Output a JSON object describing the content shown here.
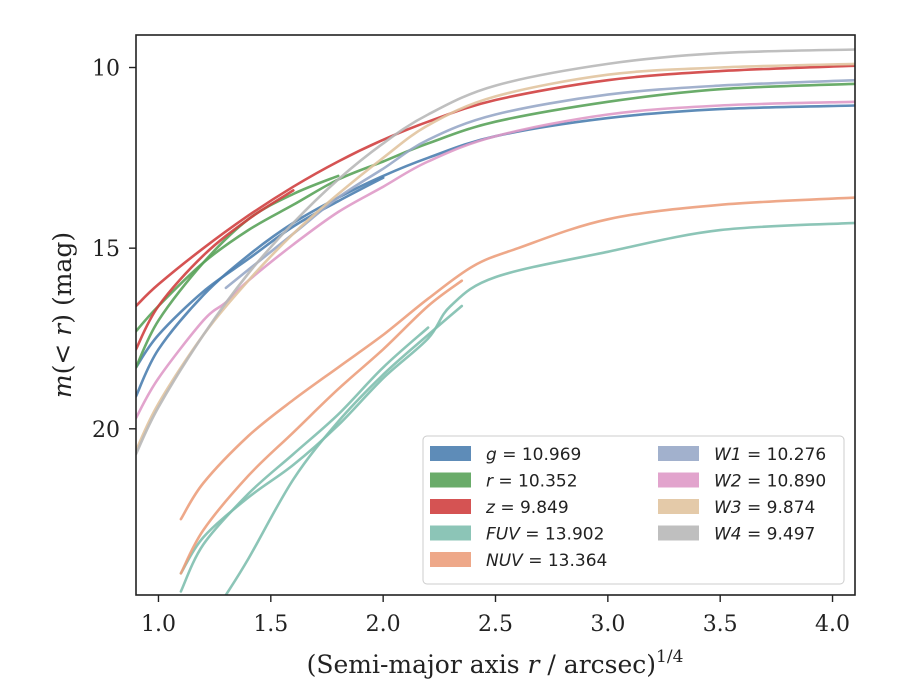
{
  "chart_data": {
    "type": "line",
    "title": "",
    "xlabel": "(Semi-major axis r / arcsec)",
    "xlabel_parts": {
      "before": "(Semi-major axis ",
      "var": "r",
      "after": " / arcsec)",
      "sup": "1/4"
    },
    "ylabel": "m(< r) (mag)",
    "ylabel_parts": {
      "func": "m",
      "open": "(",
      "lt": "< ",
      "var": "r",
      "close": ")",
      "unit": " (mag)"
    },
    "xlim": [
      0.9,
      4.1
    ],
    "ylim": [
      24.6,
      9.1
    ],
    "y_inverted": true,
    "xticks": [
      1.0,
      1.5,
      2.0,
      2.5,
      3.0,
      3.5,
      4.0
    ],
    "xtick_labels": [
      "1.0",
      "1.5",
      "2.0",
      "2.5",
      "3.0",
      "3.5",
      "4.0"
    ],
    "yticks": [
      10,
      15,
      20
    ],
    "ytick_labels": [
      "10",
      "15",
      "20"
    ],
    "grid": false,
    "legend_position": "lower-right",
    "series": [
      {
        "name": "g",
        "value_label": "= 10.969",
        "color": "#4c7fb0",
        "x": [
          0.9,
          1.0,
          1.2,
          1.4,
          1.6,
          1.8,
          2.0,
          2.2,
          2.5,
          3.0,
          3.5,
          4.1
        ],
        "y": [
          19.1,
          17.8,
          16.3,
          15.2,
          14.3,
          13.6,
          13.0,
          12.5,
          11.9,
          11.4,
          11.15,
          11.05
        ]
      },
      {
        "name": "g",
        "color": "#4c7fb0",
        "x": [
          0.9,
          1.0,
          1.2,
          1.4,
          1.6,
          1.8,
          2.0
        ],
        "y": [
          18.3,
          17.4,
          16.2,
          15.3,
          14.4,
          13.7,
          13.05
        ]
      },
      {
        "name": "r",
        "value_label": "= 10.352",
        "color": "#5aa35a",
        "x": [
          0.9,
          1.0,
          1.2,
          1.4,
          1.6,
          1.8,
          2.0,
          2.2,
          2.5,
          3.0,
          3.5,
          4.1
        ],
        "y": [
          17.3,
          16.6,
          15.4,
          14.5,
          13.8,
          13.1,
          12.6,
          12.1,
          11.5,
          10.95,
          10.6,
          10.45
        ]
      },
      {
        "name": "r",
        "color": "#5aa35a",
        "x": [
          0.9,
          1.0,
          1.2,
          1.4,
          1.6,
          1.8
        ],
        "y": [
          18.3,
          17.0,
          15.4,
          14.2,
          13.5,
          13.0
        ]
      },
      {
        "name": "z",
        "value_label": "= 9.849",
        "color": "#d04040",
        "x": [
          0.9,
          1.0,
          1.2,
          1.4,
          1.6,
          1.8,
          2.0,
          2.2,
          2.5,
          3.0,
          3.5,
          4.1
        ],
        "y": [
          16.6,
          16.0,
          15.0,
          14.1,
          13.3,
          12.6,
          12.0,
          11.5,
          10.9,
          10.35,
          10.1,
          9.95
        ]
      },
      {
        "name": "z",
        "color": "#d04040",
        "x": [
          0.9,
          1.0,
          1.2,
          1.4,
          1.6
        ],
        "y": [
          17.8,
          16.6,
          15.2,
          14.2,
          13.4
        ]
      },
      {
        "name": "FUV",
        "value_label": "= 13.902",
        "color": "#7fbfaf",
        "x": [
          1.1,
          1.2,
          1.4,
          1.6,
          1.8,
          2.0,
          2.2,
          2.3,
          2.5,
          3.0,
          3.5,
          4.1
        ],
        "y": [
          24.0,
          23.0,
          21.9,
          21.0,
          19.9,
          18.6,
          17.5,
          16.6,
          15.8,
          15.1,
          14.5,
          14.3
        ]
      },
      {
        "name": "FUV",
        "color": "#7fbfaf",
        "x": [
          1.1,
          1.2,
          1.4,
          1.6,
          1.8,
          2.0,
          2.2
        ],
        "y": [
          24.5,
          23.2,
          21.8,
          20.7,
          19.6,
          18.3,
          17.2
        ]
      },
      {
        "name": "FUV",
        "color": "#7fbfaf",
        "x": [
          1.3,
          1.4,
          1.6,
          1.8,
          2.0,
          2.2,
          2.35
        ],
        "y": [
          24.6,
          23.6,
          21.4,
          19.8,
          18.5,
          17.4,
          16.6
        ]
      },
      {
        "name": "NUV",
        "value_label": "= 13.364",
        "color": "#ec9f7c",
        "x": [
          1.1,
          1.2,
          1.4,
          1.6,
          1.8,
          2.0,
          2.2,
          2.4,
          2.6,
          3.0,
          3.5,
          4.1
        ],
        "y": [
          22.5,
          21.5,
          20.2,
          19.2,
          18.3,
          17.4,
          16.4,
          15.5,
          15.0,
          14.2,
          13.8,
          13.6
        ]
      },
      {
        "name": "NUV",
        "color": "#ec9f7c",
        "x": [
          1.1,
          1.2,
          1.4,
          1.6,
          1.8,
          2.0,
          2.2,
          2.35
        ],
        "y": [
          24.0,
          22.8,
          21.3,
          20.1,
          18.9,
          17.8,
          16.6,
          15.9
        ]
      },
      {
        "name": "W1",
        "value_label": "= 10.276",
        "color": "#98a8c8",
        "x": [
          1.3,
          1.4,
          1.6,
          1.8,
          2.0,
          2.2,
          2.5,
          3.0,
          3.5,
          4.1
        ],
        "y": [
          16.1,
          15.6,
          14.6,
          13.6,
          12.8,
          12.0,
          11.3,
          10.75,
          10.5,
          10.35
        ]
      },
      {
        "name": "W2",
        "value_label": "= 10.890",
        "color": "#df9ac8",
        "x": [
          0.9,
          1.0,
          1.2,
          1.3,
          1.4,
          1.6,
          1.8,
          2.0,
          2.2,
          2.5,
          3.0,
          3.5,
          4.1
        ],
        "y": [
          19.7,
          18.6,
          17.0,
          16.5,
          15.9,
          14.9,
          14.0,
          13.3,
          12.6,
          11.9,
          11.3,
          11.05,
          10.95
        ]
      },
      {
        "name": "W3",
        "value_label": "= 9.874",
        "color": "#e1c4a0",
        "x": [
          0.9,
          1.0,
          1.2,
          1.4,
          1.6,
          1.8,
          2.0,
          2.2,
          2.5,
          3.0,
          3.5,
          4.1
        ],
        "y": [
          20.6,
          19.3,
          17.4,
          15.9,
          14.6,
          13.5,
          12.5,
          11.6,
          10.8,
          10.2,
          10.0,
          9.9
        ]
      },
      {
        "name": "W4",
        "value_label": "= 9.497",
        "color": "#b8b8b8",
        "x": [
          0.9,
          1.0,
          1.2,
          1.4,
          1.6,
          1.8,
          2.0,
          2.2,
          2.5,
          3.0,
          3.5,
          4.1
        ],
        "y": [
          20.7,
          19.4,
          17.4,
          15.7,
          14.3,
          13.1,
          12.1,
          11.3,
          10.5,
          9.9,
          9.6,
          9.5
        ]
      }
    ],
    "legend": [
      {
        "name": "g",
        "value_label": "= 10.969",
        "color": "#4c7fb0"
      },
      {
        "name": "r",
        "value_label": "= 10.352",
        "color": "#5aa35a"
      },
      {
        "name": "z",
        "value_label": "= 9.849",
        "color": "#d04040"
      },
      {
        "name": "FUV",
        "value_label": "= 13.902",
        "color": "#7fbfaf"
      },
      {
        "name": "NUV",
        "value_label": "= 13.364",
        "color": "#ec9f7c"
      },
      {
        "name": "W1",
        "value_label": "= 10.276",
        "color": "#98a8c8"
      },
      {
        "name": "W2",
        "value_label": "= 10.890",
        "color": "#df9ac8"
      },
      {
        "name": "W3",
        "value_label": "= 9.874",
        "color": "#e1c4a0"
      },
      {
        "name": "W4",
        "value_label": "= 9.497",
        "color": "#b8b8b8"
      }
    ]
  }
}
